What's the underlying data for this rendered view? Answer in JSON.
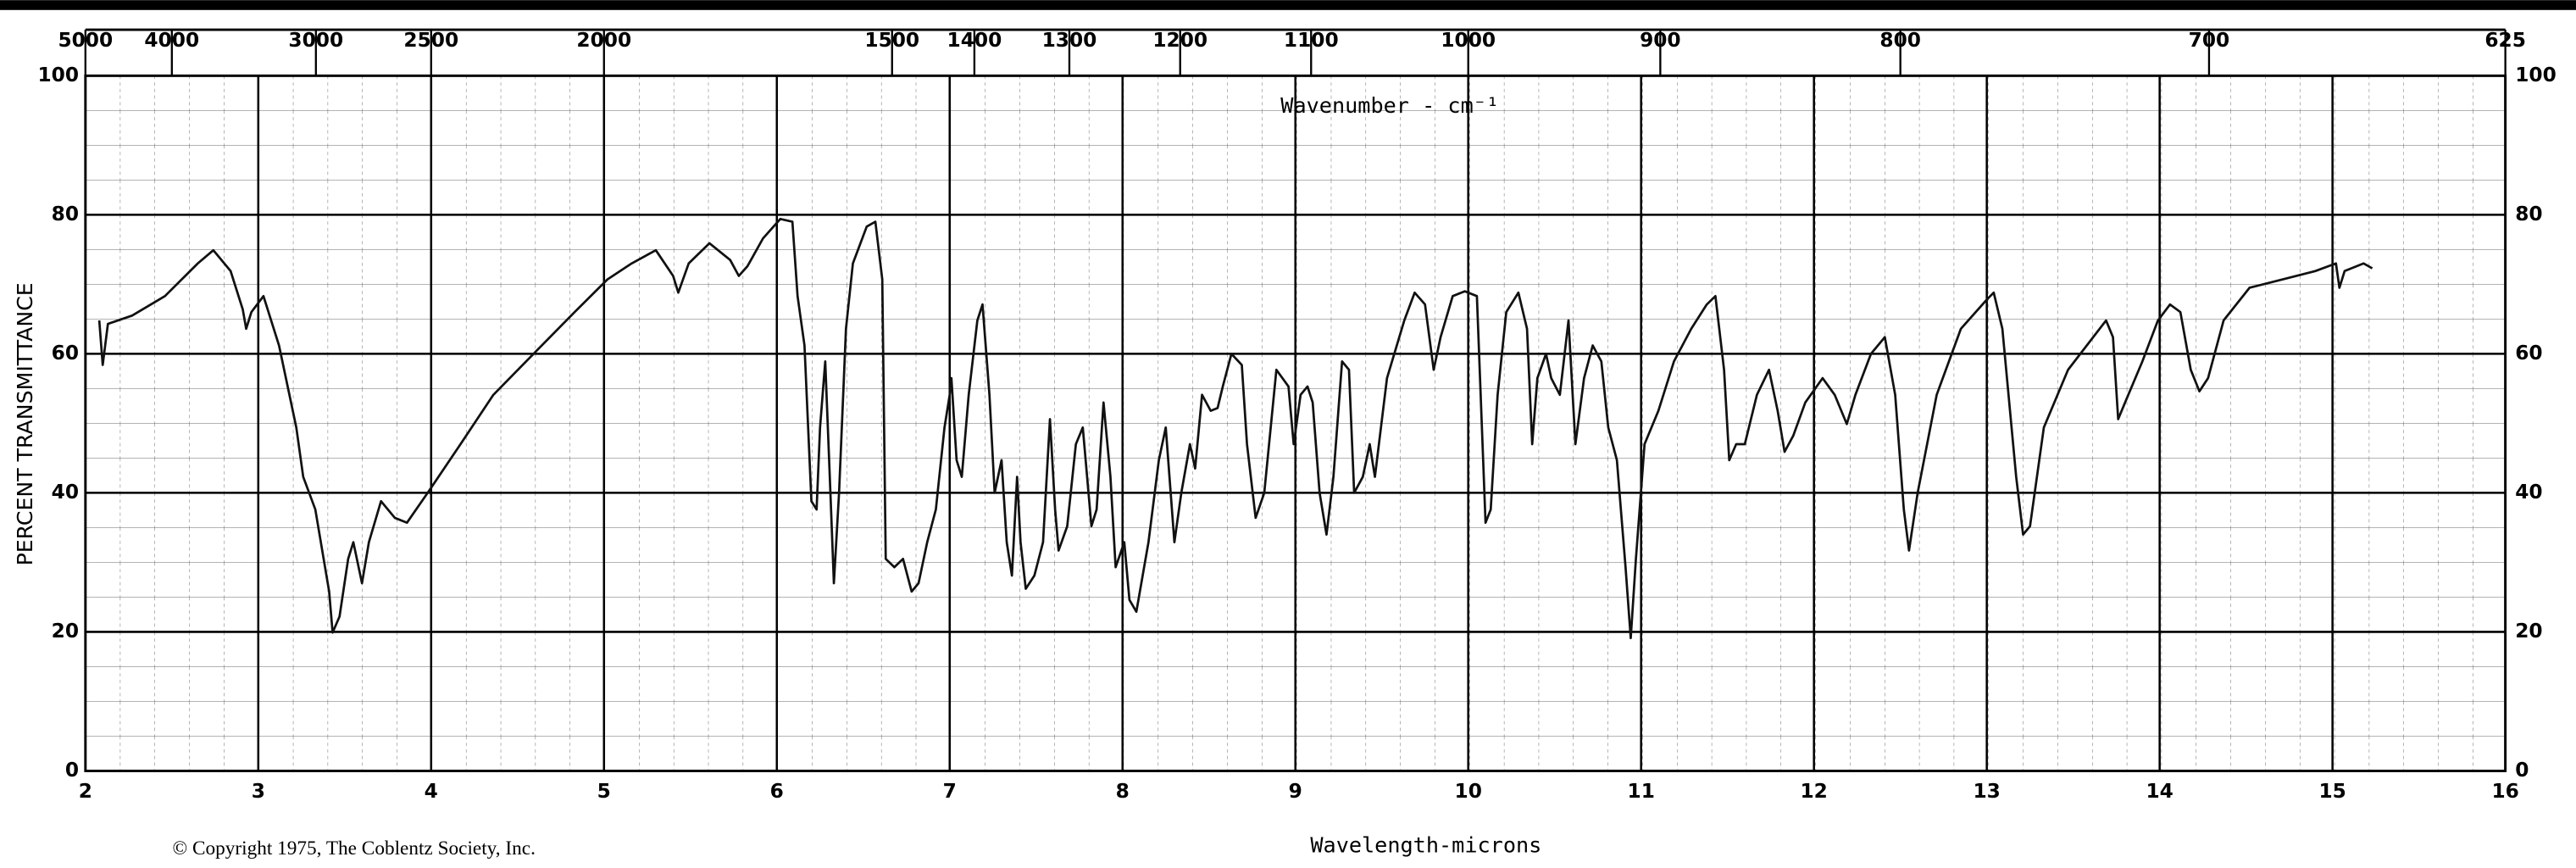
{
  "chart_data": {
    "type": "line",
    "title": "Wavenumber - cm⁻¹",
    "x_label": "Wavelength-microns",
    "y_label": "PERCENT TRANSMITTANCE",
    "note": "© Copyright 1975, The Coblentz Society, Inc.",
    "xlim": [
      2,
      16
    ],
    "xticks": [
      2,
      3,
      4,
      5,
      6,
      7,
      8,
      9,
      10,
      11,
      12,
      13,
      14,
      15,
      16
    ],
    "x2ticks": [
      5000,
      4000,
      3000,
      2500,
      2000,
      1500,
      1400,
      1300,
      1200,
      1100,
      1000,
      900,
      800,
      700,
      625
    ],
    "ylim": [
      0,
      100
    ],
    "yticks": [
      0,
      20,
      40,
      60,
      80,
      100
    ],
    "grid": true,
    "series": [
      {
        "name": "spectrum",
        "color": "#111111",
        "x": [
          2.08,
          2.1,
          2.13,
          2.27,
          2.46,
          2.65,
          2.74,
          2.84,
          2.91,
          2.93,
          2.96,
          3.03,
          3.12,
          3.22,
          3.26,
          3.33,
          3.41,
          3.43,
          3.47,
          3.52,
          3.55,
          3.6,
          3.64,
          3.71,
          3.79,
          3.86,
          3.98,
          4.17,
          4.36,
          4.64,
          4.83,
          5.02,
          5.16,
          5.3,
          5.4,
          5.43,
          5.49,
          5.61,
          5.73,
          5.78,
          5.83,
          5.92,
          6.02,
          6.09,
          6.12,
          6.16,
          6.2,
          6.23,
          6.25,
          6.28,
          6.31,
          6.33,
          6.36,
          6.4,
          6.44,
          6.52,
          6.57,
          6.61,
          6.63,
          6.68,
          6.73,
          6.78,
          6.82,
          6.87,
          6.92,
          6.97,
          7.0,
          7.01,
          7.04,
          7.07,
          7.11,
          7.16,
          7.19,
          7.23,
          7.26,
          7.3,
          7.33,
          7.36,
          7.39,
          7.41,
          7.44,
          7.49,
          7.54,
          7.58,
          7.61,
          7.63,
          7.68,
          7.73,
          7.77,
          7.82,
          7.85,
          7.89,
          7.93,
          7.96,
          8.01,
          8.04,
          8.08,
          8.15,
          8.21,
          8.25,
          8.3,
          8.34,
          8.39,
          8.42,
          8.46,
          8.51,
          8.55,
          8.58,
          8.63,
          8.69,
          8.72,
          8.77,
          8.82,
          8.89,
          8.96,
          8.99,
          9.03,
          9.07,
          9.1,
          9.14,
          9.18,
          9.22,
          9.27,
          9.31,
          9.34,
          9.39,
          9.43,
          9.46,
          9.53,
          9.63,
          9.69,
          9.75,
          9.8,
          9.84,
          9.91,
          9.98,
          10.05,
          10.1,
          10.13,
          10.17,
          10.22,
          10.29,
          10.34,
          10.37,
          10.4,
          10.45,
          10.48,
          10.53,
          10.58,
          10.62,
          10.67,
          10.72,
          10.77,
          10.81,
          10.86,
          10.91,
          10.94,
          10.97,
          11.02,
          11.1,
          11.19,
          11.29,
          11.38,
          11.43,
          11.48,
          11.51,
          11.55,
          11.6,
          11.67,
          11.74,
          11.79,
          11.83,
          11.88,
          11.95,
          12.05,
          12.12,
          12.19,
          12.24,
          12.33,
          12.41,
          12.47,
          12.52,
          12.55,
          12.6,
          12.71,
          12.85,
          13.0,
          13.04,
          13.09,
          13.17,
          13.21,
          13.25,
          13.33,
          13.47,
          13.69,
          13.73,
          13.76,
          13.8,
          13.9,
          13.99,
          14.06,
          14.12,
          14.18,
          14.23,
          14.28,
          14.37,
          14.52,
          14.71,
          14.9,
          15.02,
          15.04,
          15.07,
          15.18,
          15.23
        ],
        "values": [
          64.8,
          58.4,
          64.3,
          65.5,
          68.3,
          73.0,
          74.9,
          71.9,
          66.4,
          63.6,
          66.0,
          68.3,
          61.2,
          49.4,
          42.3,
          37.6,
          25.8,
          19.9,
          22.2,
          30.5,
          32.9,
          27.0,
          32.9,
          38.8,
          36.4,
          35.7,
          40.0,
          47.0,
          54.1,
          61.2,
          66.0,
          70.7,
          73.0,
          74.9,
          71.2,
          68.8,
          73.0,
          75.9,
          73.5,
          71.2,
          72.6,
          76.6,
          79.4,
          79.0,
          68.3,
          61.2,
          38.8,
          37.6,
          49.4,
          58.9,
          40.0,
          27.0,
          40.0,
          63.6,
          73.0,
          78.3,
          79.0,
          70.7,
          30.5,
          29.3,
          30.5,
          25.8,
          27.0,
          32.9,
          37.6,
          49.4,
          54.1,
          56.5,
          44.7,
          42.3,
          54.1,
          64.8,
          67.1,
          54.1,
          40.0,
          44.7,
          32.9,
          28.1,
          42.3,
          32.9,
          26.2,
          28.1,
          32.9,
          50.6,
          37.6,
          31.7,
          35.2,
          47.0,
          49.4,
          35.2,
          37.6,
          53.0,
          42.3,
          29.3,
          32.9,
          24.6,
          22.9,
          32.9,
          44.7,
          49.4,
          32.9,
          40.0,
          47.0,
          43.5,
          54.1,
          51.8,
          52.2,
          55.3,
          60.0,
          58.4,
          47.0,
          36.4,
          40.0,
          57.7,
          55.3,
          47.0,
          54.1,
          55.3,
          53.0,
          40.0,
          34.0,
          42.3,
          58.9,
          57.7,
          40.0,
          42.3,
          47.0,
          42.3,
          56.5,
          64.8,
          68.8,
          67.1,
          57.7,
          62.4,
          68.3,
          69.0,
          68.3,
          35.7,
          37.6,
          54.1,
          66.0,
          68.8,
          63.6,
          47.0,
          56.5,
          60.0,
          56.5,
          54.1,
          64.8,
          47.0,
          56.5,
          61.2,
          58.9,
          49.4,
          44.7,
          29.3,
          19.1,
          30.5,
          47.0,
          51.8,
          58.9,
          63.6,
          67.1,
          68.3,
          57.7,
          44.7,
          47.0,
          47.0,
          54.1,
          57.7,
          51.8,
          45.9,
          48.2,
          53.0,
          56.5,
          54.1,
          49.9,
          54.1,
          60.0,
          62.4,
          54.1,
          37.6,
          31.7,
          40.0,
          54.1,
          63.6,
          67.8,
          68.8,
          63.6,
          42.3,
          34.0,
          35.2,
          49.4,
          57.7,
          64.8,
          62.4,
          50.6,
          53.0,
          58.9,
          64.8,
          67.1,
          66.0,
          57.7,
          54.6,
          56.5,
          64.8,
          69.5,
          70.7,
          71.9,
          73.0,
          69.5,
          71.9,
          73.0,
          72.3
        ]
      }
    ]
  }
}
